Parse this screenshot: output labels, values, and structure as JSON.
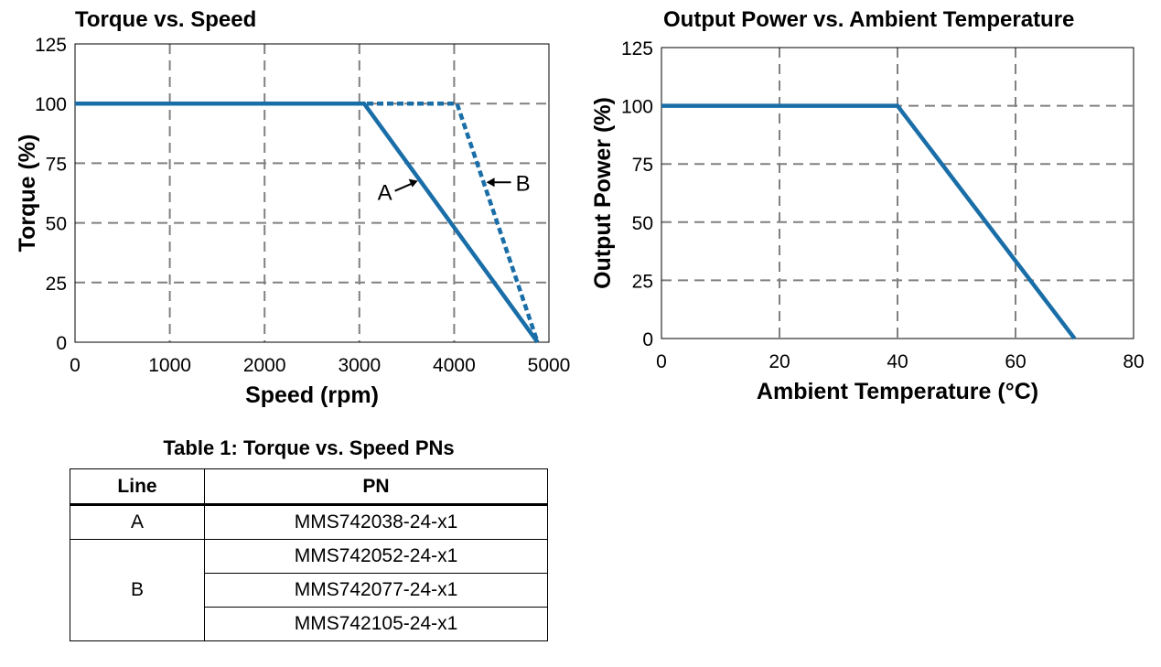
{
  "colors": {
    "line": "#1a6ea8",
    "grid": "#808080",
    "frame": "#000000"
  },
  "chart_data": [
    {
      "type": "line",
      "title": "Torque vs. Speed",
      "xlabel": "Speed (rpm)",
      "ylabel": "Torque (%)",
      "xlim": [
        0,
        5000
      ],
      "ylim": [
        0,
        125
      ],
      "xticks": [
        0,
        1000,
        2000,
        3000,
        4000,
        5000
      ],
      "yticks": [
        0,
        25,
        50,
        75,
        100,
        125
      ],
      "grid": true,
      "series": [
        {
          "name": "A",
          "style": "solid",
          "x": [
            0,
            3050,
            4880
          ],
          "y": [
            100,
            100,
            0
          ]
        },
        {
          "name": "B",
          "style": "dashed",
          "x": [
            0,
            4030,
            4880
          ],
          "y": [
            100,
            100,
            0
          ]
        }
      ],
      "annotations": [
        {
          "text": "A",
          "points_to": "A"
        },
        {
          "text": "B",
          "points_to": "B"
        }
      ]
    },
    {
      "type": "line",
      "title": "Output Power vs. Ambient Temperature",
      "xlabel": "Ambient Temperature (°C)",
      "ylabel": "Output Power (%)",
      "xlim": [
        0,
        80
      ],
      "ylim": [
        0,
        125
      ],
      "xticks": [
        0,
        20,
        40,
        60,
        80
      ],
      "yticks": [
        0,
        25,
        50,
        75,
        100,
        125
      ],
      "grid": true,
      "series": [
        {
          "style": "solid",
          "x": [
            0,
            40,
            70
          ],
          "y": [
            100,
            100,
            0
          ]
        }
      ]
    }
  ],
  "table": {
    "title": "Table 1: Torque vs. Speed PNs",
    "headers": {
      "line": "Line",
      "pn": "PN"
    },
    "rows": [
      {
        "line": "A",
        "pns": [
          "MMS742038-24-x1"
        ]
      },
      {
        "line": "B",
        "pns": [
          "MMS742052-24-x1",
          "MMS742077-24-x1",
          "MMS742105-24-x1"
        ]
      }
    ]
  }
}
